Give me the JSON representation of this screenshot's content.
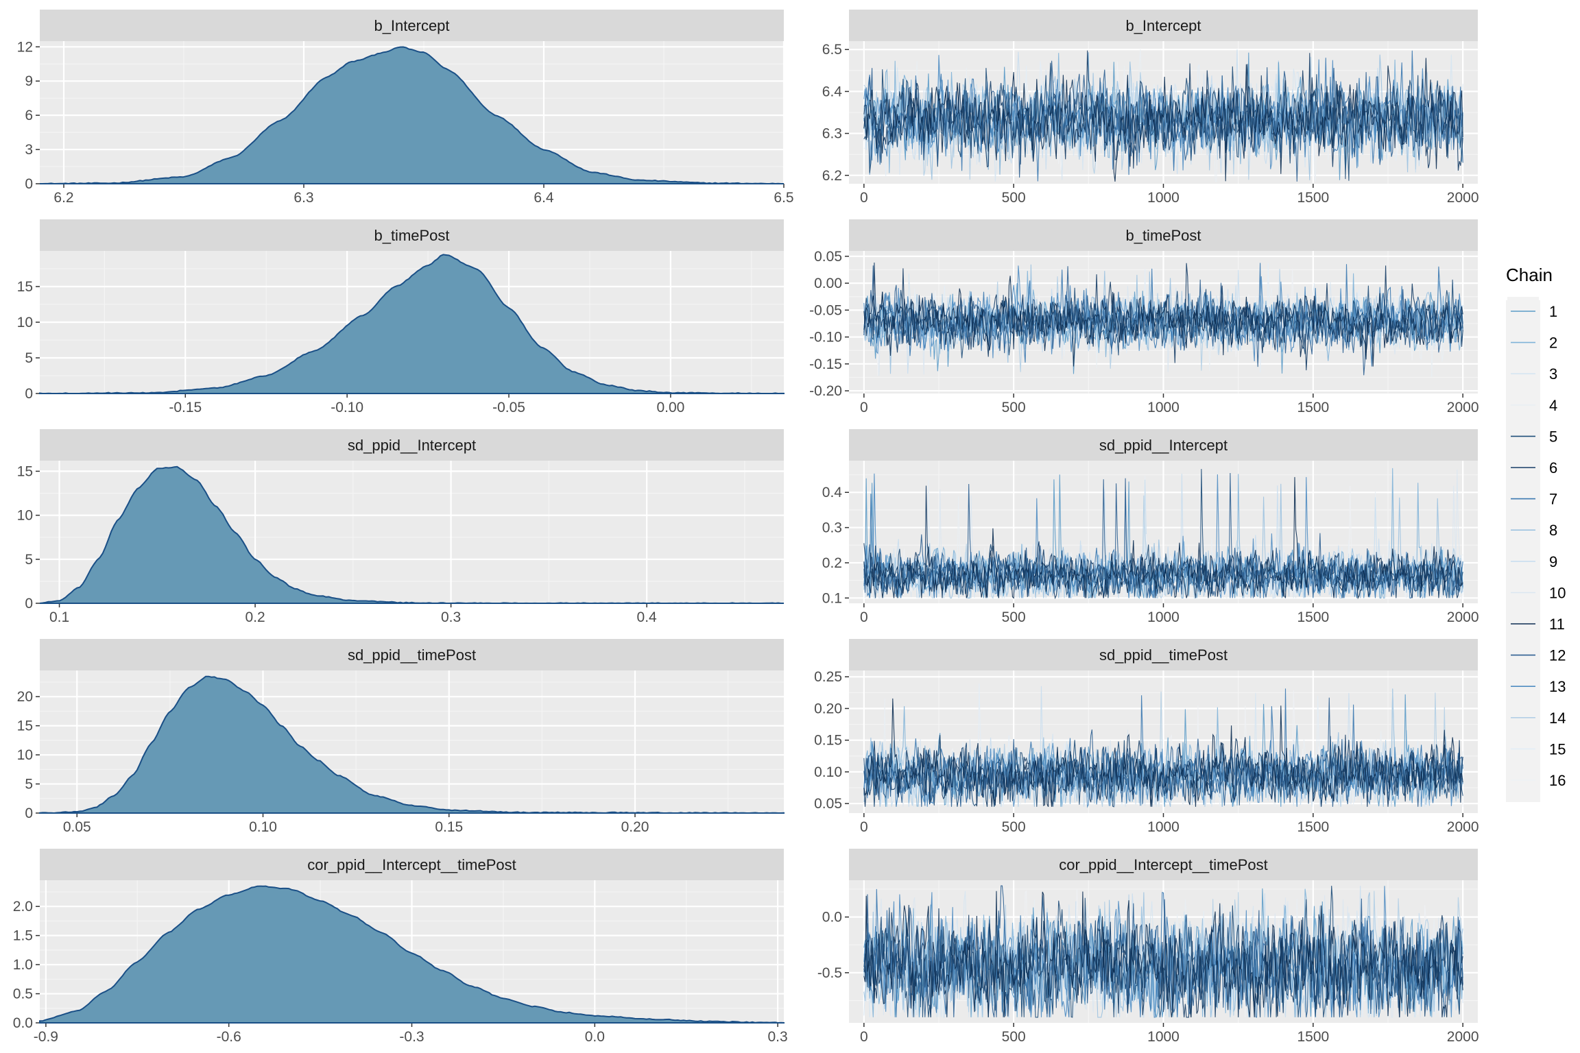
{
  "legend": {
    "title": "Chain",
    "entries": [
      "1",
      "2",
      "3",
      "4",
      "5",
      "6",
      "7",
      "8",
      "9",
      "10",
      "11",
      "12",
      "13",
      "14",
      "15",
      "16"
    ],
    "colors": [
      "#5b9bc8",
      "#7fb3d8",
      "#d6e6f2",
      "#e9eef3",
      "#1f4e79",
      "#163d66",
      "#3a78b0",
      "#9cc2e0",
      "#c9def0",
      "#dbe7f1",
      "#0c2d52",
      "#2d5f91",
      "#4f8cc2",
      "#b3cfe6",
      "#e3edf6",
      "#eef1f4"
    ]
  },
  "chart_data": [
    {
      "type": "area",
      "panel": "density",
      "title": "b_Intercept",
      "xlim": [
        6.19,
        6.5
      ],
      "ylim": [
        0,
        12.5
      ],
      "xticks": [
        6.2,
        6.3,
        6.4,
        6.5
      ],
      "xtick_labels": [
        "6.2",
        "6.3",
        "6.4",
        "6.5"
      ],
      "yticks": [
        0,
        3,
        6,
        9,
        12
      ],
      "ytick_labels": [
        "0",
        "3",
        "6",
        "9",
        "12"
      ],
      "x": [
        6.19,
        6.22,
        6.25,
        6.27,
        6.29,
        6.31,
        6.32,
        6.335,
        6.34,
        6.35,
        6.36,
        6.38,
        6.4,
        6.42,
        6.44,
        6.47,
        6.5
      ],
      "y": [
        0,
        0.05,
        0.6,
        2.3,
        5.5,
        9.4,
        10.7,
        11.6,
        12.0,
        11.5,
        10.0,
        6.0,
        3.0,
        1.0,
        0.3,
        0.05,
        0
      ]
    },
    {
      "type": "line",
      "panel": "trace",
      "title": "b_Intercept",
      "xlim": [
        -50,
        2050
      ],
      "ylim": [
        6.18,
        6.52
      ],
      "xticks": [
        0,
        500,
        1000,
        1500,
        2000
      ],
      "xtick_labels": [
        "0",
        "500",
        "1000",
        "1500",
        "2000"
      ],
      "yticks": [
        6.2,
        6.3,
        6.4,
        6.5
      ],
      "ytick_labels": [
        "6.2",
        "6.3",
        "6.4",
        "6.5"
      ],
      "n_chains": 16,
      "iterations": 2000,
      "center": 6.335,
      "spread": 0.04,
      "min": 6.185,
      "max": 6.5
    },
    {
      "type": "area",
      "panel": "density",
      "title": "b_timePost",
      "xlim": [
        -0.195,
        0.035
      ],
      "ylim": [
        0,
        20
      ],
      "xticks": [
        -0.15,
        -0.1,
        -0.05,
        0.0
      ],
      "xtick_labels": [
        "-0.15",
        "-0.10",
        "-0.05",
        "0.00"
      ],
      "yticks": [
        0,
        5,
        10,
        15
      ],
      "ytick_labels": [
        "0",
        "5",
        "10",
        "15"
      ],
      "x": [
        -0.195,
        -0.16,
        -0.14,
        -0.125,
        -0.11,
        -0.095,
        -0.085,
        -0.075,
        -0.07,
        -0.06,
        -0.05,
        -0.04,
        -0.03,
        -0.02,
        -0.01,
        0.0,
        0.035
      ],
      "y": [
        0,
        0.1,
        0.8,
        2.5,
        6.0,
        11.0,
        15.0,
        18.0,
        19.5,
        17.5,
        12.0,
        6.5,
        3.0,
        1.2,
        0.4,
        0.1,
        0
      ]
    },
    {
      "type": "line",
      "panel": "trace",
      "title": "b_timePost",
      "xlim": [
        -50,
        2050
      ],
      "ylim": [
        -0.205,
        0.06
      ],
      "xticks": [
        0,
        500,
        1000,
        1500,
        2000
      ],
      "xtick_labels": [
        "0",
        "500",
        "1000",
        "1500",
        "2000"
      ],
      "yticks": [
        -0.2,
        -0.15,
        -0.1,
        -0.05,
        0.0,
        0.05
      ],
      "ytick_labels": [
        "-0.20",
        "-0.15",
        "-0.10",
        "-0.05",
        "0.00",
        "0.05"
      ],
      "n_chains": 16,
      "iterations": 2000,
      "center": -0.072,
      "spread": 0.022,
      "min": -0.175,
      "max": 0.04
    },
    {
      "type": "area",
      "panel": "density",
      "title": "sd_ppid__Intercept",
      "xlim": [
        0.09,
        0.47
      ],
      "ylim": [
        0,
        16.2
      ],
      "xticks": [
        0.1,
        0.2,
        0.3,
        0.4
      ],
      "xtick_labels": [
        "0.1",
        "0.2",
        "0.3",
        "0.4"
      ],
      "yticks": [
        0,
        5,
        10,
        15
      ],
      "ytick_labels": [
        "0",
        "5",
        "10",
        "15"
      ],
      "x": [
        0.09,
        0.1,
        0.11,
        0.12,
        0.13,
        0.14,
        0.15,
        0.16,
        0.17,
        0.18,
        0.19,
        0.2,
        0.21,
        0.22,
        0.23,
        0.25,
        0.28,
        0.3,
        0.47
      ],
      "y": [
        0,
        0.3,
        1.8,
        5.0,
        9.5,
        13.0,
        15.3,
        15.5,
        14.0,
        11.0,
        8.0,
        5.0,
        3.0,
        1.7,
        0.9,
        0.3,
        0.05,
        0,
        0
      ]
    },
    {
      "type": "line",
      "panel": "trace",
      "title": "sd_ppid__Intercept",
      "xlim": [
        -50,
        2050
      ],
      "ylim": [
        0.085,
        0.49
      ],
      "xticks": [
        0,
        500,
        1000,
        1500,
        2000
      ],
      "xtick_labels": [
        "0",
        "500",
        "1000",
        "1500",
        "2000"
      ],
      "yticks": [
        0.1,
        0.2,
        0.3,
        0.4
      ],
      "ytick_labels": [
        "0.1",
        "0.2",
        "0.3",
        "0.4"
      ],
      "n_chains": 16,
      "iterations": 2000,
      "center": 0.165,
      "spread": 0.03,
      "min": 0.1,
      "max": 0.47
    },
    {
      "type": "area",
      "panel": "density",
      "title": "sd_ppid__timePost",
      "xlim": [
        0.04,
        0.24
      ],
      "ylim": [
        0,
        24.5
      ],
      "xticks": [
        0.05,
        0.1,
        0.15,
        0.2
      ],
      "xtick_labels": [
        "0.05",
        "0.10",
        "0.15",
        "0.20"
      ],
      "yticks": [
        0,
        5,
        10,
        15,
        20
      ],
      "ytick_labels": [
        "0",
        "5",
        "10",
        "15",
        "20"
      ],
      "x": [
        0.04,
        0.05,
        0.055,
        0.06,
        0.065,
        0.07,
        0.075,
        0.08,
        0.085,
        0.09,
        0.095,
        0.1,
        0.105,
        0.11,
        0.115,
        0.12,
        0.13,
        0.14,
        0.15,
        0.17,
        0.24
      ],
      "y": [
        0,
        0.2,
        1.0,
        3.0,
        6.5,
        12.0,
        17.5,
        21.5,
        23.5,
        23.0,
        21.0,
        18.5,
        15.0,
        11.5,
        9.0,
        6.5,
        3.0,
        1.3,
        0.5,
        0.1,
        0
      ]
    },
    {
      "type": "line",
      "panel": "trace",
      "title": "sd_ppid__timePost",
      "xlim": [
        -50,
        2050
      ],
      "ylim": [
        0.035,
        0.26
      ],
      "xticks": [
        0,
        500,
        1000,
        1500,
        2000
      ],
      "xtick_labels": [
        "0",
        "500",
        "1000",
        "1500",
        "2000"
      ],
      "yticks": [
        0.05,
        0.1,
        0.15,
        0.2,
        0.25
      ],
      "ytick_labels": [
        "0.05",
        "0.10",
        "0.15",
        "0.20",
        "0.25"
      ],
      "n_chains": 16,
      "iterations": 2000,
      "center": 0.095,
      "spread": 0.02,
      "min": 0.045,
      "max": 0.24
    },
    {
      "type": "area",
      "panel": "density",
      "title": "cor_ppid__Intercept__timePost",
      "xlim": [
        -0.91,
        0.31
      ],
      "ylim": [
        0,
        2.45
      ],
      "xticks": [
        -0.9,
        -0.6,
        -0.3,
        0.0,
        0.3
      ],
      "xtick_labels": [
        "-0.9",
        "-0.6",
        "-0.3",
        "0.0",
        "0.3"
      ],
      "yticks": [
        0,
        0.5,
        1.0,
        1.5,
        2.0
      ],
      "ytick_labels": [
        "0.0",
        "0.5",
        "1.0",
        "1.5",
        "2.0"
      ],
      "x": [
        -0.91,
        -0.85,
        -0.8,
        -0.75,
        -0.7,
        -0.65,
        -0.6,
        -0.55,
        -0.5,
        -0.45,
        -0.4,
        -0.35,
        -0.3,
        -0.25,
        -0.2,
        -0.15,
        -0.1,
        -0.05,
        0.0,
        0.1,
        0.2,
        0.31
      ],
      "y": [
        0.03,
        0.2,
        0.55,
        1.05,
        1.55,
        1.95,
        2.2,
        2.35,
        2.3,
        2.1,
        1.85,
        1.55,
        1.2,
        0.9,
        0.62,
        0.42,
        0.28,
        0.18,
        0.12,
        0.06,
        0.02,
        0
      ]
    },
    {
      "type": "line",
      "panel": "trace",
      "title": "cor_ppid__Intercept__timePost",
      "xlim": [
        -50,
        2050
      ],
      "ylim": [
        -0.95,
        0.33
      ],
      "xticks": [
        0,
        500,
        1000,
        1500,
        2000
      ],
      "xtick_labels": [
        "0",
        "500",
        "1000",
        "1500",
        "2000"
      ],
      "yticks": [
        -0.5,
        0.0
      ],
      "ytick_labels": [
        "-0.5",
        "0.0"
      ],
      "n_chains": 16,
      "iterations": 2000,
      "center": -0.45,
      "spread": 0.2,
      "min": -0.9,
      "max": 0.28
    }
  ]
}
